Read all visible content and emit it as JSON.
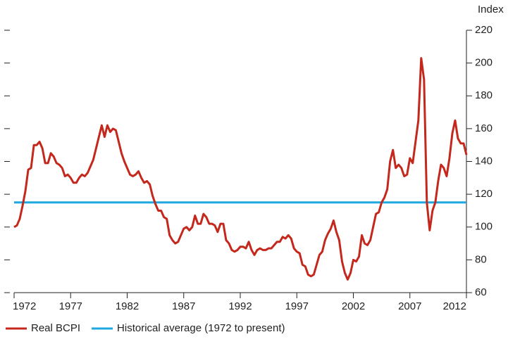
{
  "chart_data": {
    "type": "line",
    "y_axis_label": "Index",
    "xlim": [
      1972,
      2012
    ],
    "xticks": [
      1972,
      1977,
      1982,
      1987,
      1992,
      1997,
      2002,
      2007,
      2012
    ],
    "ylim": [
      60,
      220
    ],
    "yticks": [
      60,
      80,
      100,
      120,
      140,
      160,
      180,
      200,
      220
    ],
    "series": [
      {
        "name": "Real BCPI",
        "color": "#c4281c",
        "x": [
          1972,
          1972.25,
          1972.5,
          1972.75,
          1973,
          1973.25,
          1973.5,
          1973.75,
          1974,
          1974.25,
          1974.5,
          1974.75,
          1975,
          1975.25,
          1975.5,
          1975.75,
          1976,
          1976.25,
          1976.5,
          1976.75,
          1977,
          1977.25,
          1977.5,
          1977.75,
          1978,
          1978.25,
          1978.5,
          1978.75,
          1979,
          1979.25,
          1979.5,
          1979.75,
          1980,
          1980.25,
          1980.5,
          1980.75,
          1981,
          1981.25,
          1981.5,
          1981.75,
          1982,
          1982.25,
          1982.5,
          1982.75,
          1983,
          1983.25,
          1983.5,
          1983.75,
          1984,
          1984.25,
          1984.5,
          1984.75,
          1985,
          1985.25,
          1985.5,
          1985.75,
          1986,
          1986.25,
          1986.5,
          1986.75,
          1987,
          1987.25,
          1987.5,
          1987.75,
          1988,
          1988.25,
          1988.5,
          1988.75,
          1989,
          1989.25,
          1989.5,
          1989.75,
          1990,
          1990.25,
          1990.5,
          1990.75,
          1991,
          1991.25,
          1991.5,
          1991.75,
          1992,
          1992.25,
          1992.5,
          1992.75,
          1993,
          1993.25,
          1993.5,
          1993.75,
          1994,
          1994.25,
          1994.5,
          1994.75,
          1995,
          1995.25,
          1995.5,
          1995.75,
          1996,
          1996.25,
          1996.5,
          1996.75,
          1997,
          1997.25,
          1997.5,
          1997.75,
          1998,
          1998.25,
          1998.5,
          1998.75,
          1999,
          1999.25,
          1999.5,
          1999.75,
          2000,
          2000.25,
          2000.5,
          2000.75,
          2001,
          2001.25,
          2001.5,
          2001.75,
          2002,
          2002.25,
          2002.5,
          2002.75,
          2003,
          2003.25,
          2003.5,
          2003.75,
          2004,
          2004.25,
          2004.5,
          2004.75,
          2005,
          2005.25,
          2005.5,
          2005.75,
          2006,
          2006.25,
          2006.5,
          2006.75,
          2007,
          2007.25,
          2007.5,
          2007.75,
          2008,
          2008.25,
          2008.5,
          2008.75,
          2009,
          2009.25,
          2009.5,
          2009.75,
          2010,
          2010.25,
          2010.5,
          2010.75,
          2011,
          2011.25,
          2011.5,
          2011.75,
          2012
        ],
        "values": [
          100,
          101,
          105,
          113,
          122,
          135,
          136,
          150,
          150,
          152,
          148,
          139,
          139,
          145,
          143,
          139,
          138,
          136,
          131,
          132,
          130,
          127,
          127,
          130,
          132,
          131,
          133,
          137,
          141,
          148,
          155,
          162,
          155,
          162,
          158,
          160,
          159,
          152,
          145,
          140,
          136,
          132,
          131,
          132,
          134,
          130,
          127,
          128,
          126,
          119,
          114,
          110,
          110,
          106,
          105,
          95,
          92,
          90,
          91,
          95,
          99,
          100,
          98,
          100,
          107,
          102,
          102,
          108,
          106,
          102,
          102,
          101,
          97,
          102,
          102,
          92,
          90,
          86,
          85,
          86,
          88,
          88,
          87,
          91,
          86,
          83,
          86,
          87,
          86,
          86,
          87,
          87,
          89,
          91,
          91,
          94,
          93,
          95,
          93,
          87,
          85,
          84,
          77,
          76,
          71,
          70,
          71,
          77,
          83,
          85,
          92,
          96,
          99,
          104,
          97,
          92,
          79,
          72,
          68,
          72,
          80,
          79,
          82,
          95,
          90,
          89,
          92,
          100,
          108,
          109,
          115,
          118,
          123,
          140,
          147,
          136,
          138,
          136,
          131,
          132,
          142,
          139,
          152,
          165,
          203,
          190,
          115,
          98,
          110,
          115,
          128,
          138,
          136,
          131,
          142,
          157,
          165,
          154,
          151,
          151,
          144
        ]
      },
      {
        "name": "Historical average (1972 to present)",
        "color": "#1fa8e0",
        "x": [
          1972,
          2012
        ],
        "values": [
          115,
          115
        ]
      }
    ]
  }
}
